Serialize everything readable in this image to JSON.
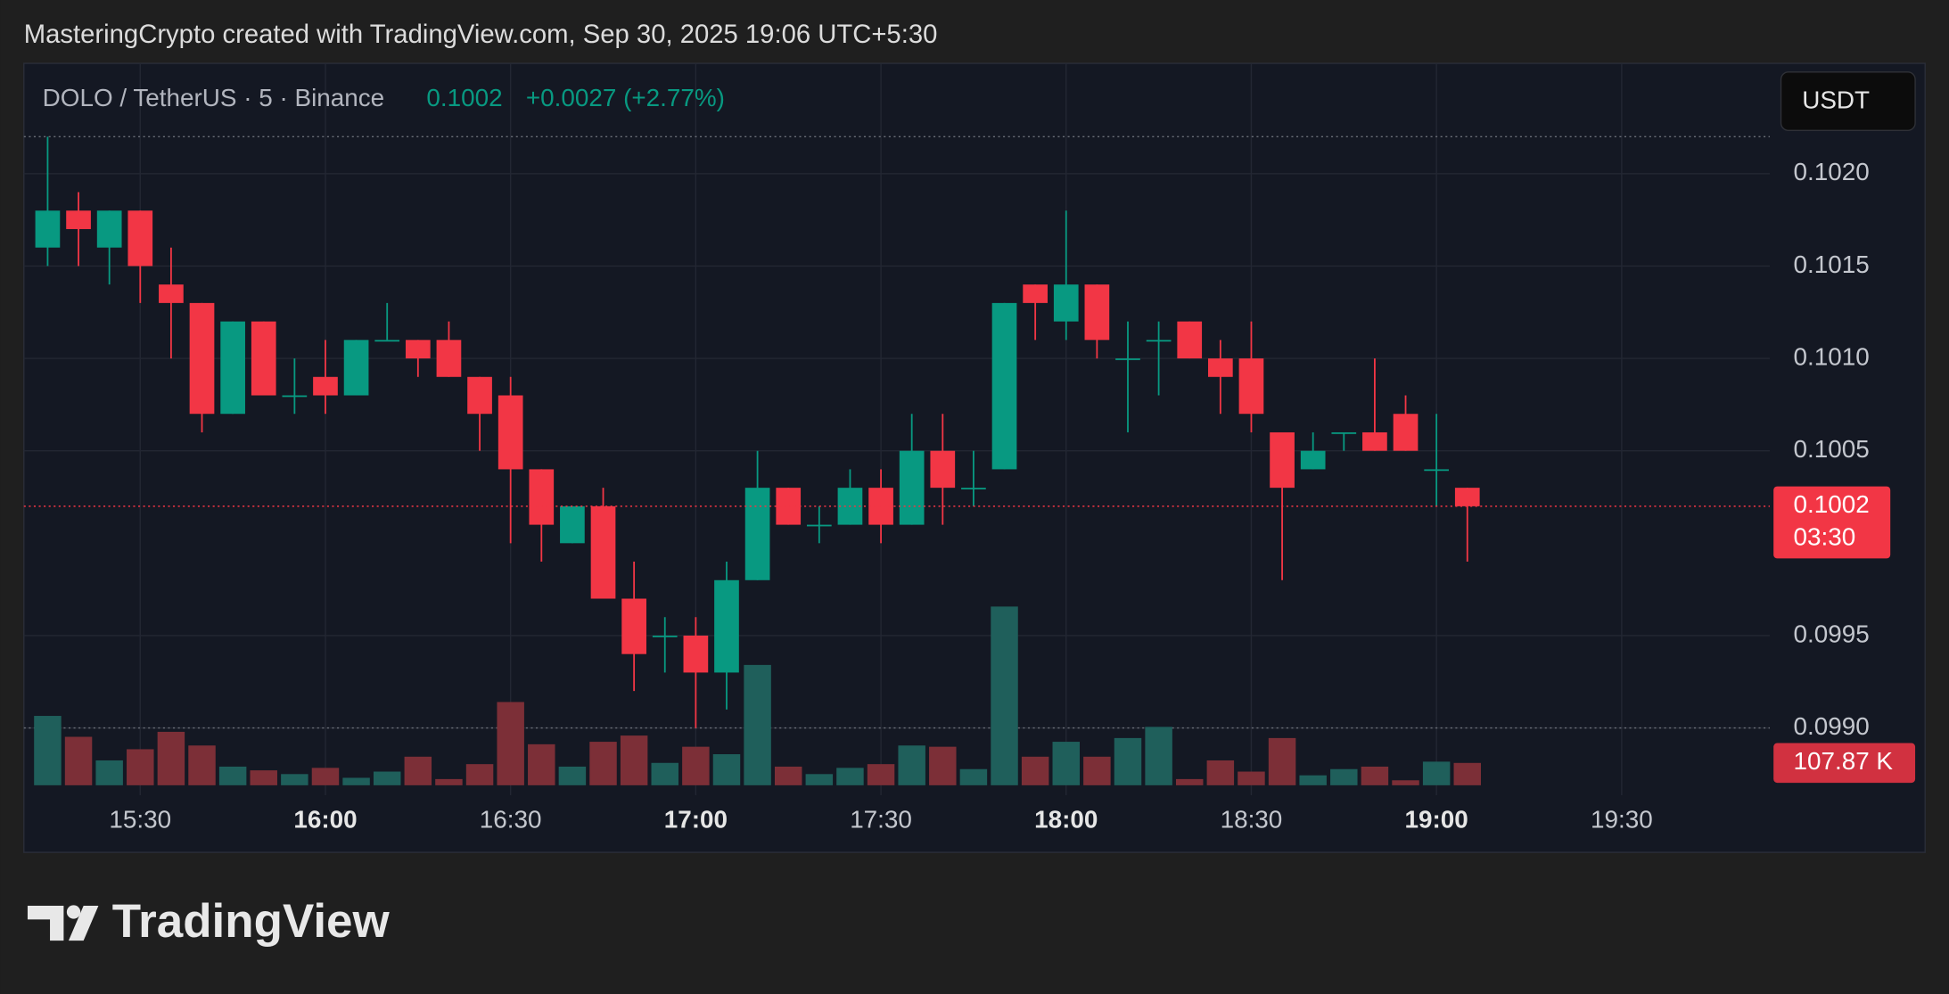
{
  "header": "MasteringCrypto created with TradingView.com, Sep 30, 2025 19:06 UTC+5:30",
  "footer": "TradingView",
  "chart_data": {
    "type": "candlestick",
    "symbol": "DOLO / TetherUS · 5 · Binance",
    "change": "+0.0027 (+2.77%)",
    "currency": "USDT",
    "countdown": "03:30",
    "open": [
      0.1016,
      0.1018,
      0.1016,
      0.1018,
      0.1014,
      0.1013,
      0.1007,
      0.1012,
      0.1008,
      0.1009,
      0.1008,
      0.1011,
      0.1011,
      0.1011,
      0.1009,
      0.1008,
      0.1004,
      0.1,
      0.1002,
      0.0997,
      0.0995,
      0.0995,
      0.0993,
      0.0998,
      0.1003,
      0.1001,
      0.1001,
      0.1003,
      0.1001,
      0.1005,
      0.1003,
      0.1004,
      0.1014,
      0.1012,
      0.1014,
      0.101,
      0.1011,
      0.1012,
      0.101,
      0.101,
      0.1006,
      0.1004,
      0.1006,
      0.1006,
      0.1007,
      0.1004,
      0.1003
    ],
    "high": [
      0.1022,
      0.1019,
      0.1018,
      0.1018,
      0.1016,
      0.1013,
      0.1012,
      0.1012,
      0.101,
      0.1011,
      0.1011,
      0.1013,
      0.1011,
      0.1012,
      0.1009,
      0.1009,
      0.1004,
      0.1002,
      0.1003,
      0.0999,
      0.0996,
      0.0996,
      0.0999,
      0.1005,
      0.1003,
      0.1002,
      0.1004,
      0.1004,
      0.1007,
      0.1007,
      0.1005,
      0.1013,
      0.1014,
      0.1018,
      0.1014,
      0.1012,
      0.1012,
      0.1012,
      0.1011,
      0.1012,
      0.1006,
      0.1006,
      0.1006,
      0.101,
      0.1008,
      0.1007,
      0.1003
    ],
    "low": [
      0.1015,
      0.1015,
      0.1014,
      0.1013,
      0.101,
      0.1006,
      0.1007,
      0.1008,
      0.1007,
      0.1007,
      0.1008,
      0.1011,
      0.1009,
      0.1009,
      0.1005,
      0.1,
      0.0999,
      0.1,
      0.0997,
      0.0992,
      0.0993,
      0.099,
      0.0991,
      0.0998,
      0.1001,
      0.1,
      0.1001,
      0.1,
      0.1001,
      0.1001,
      0.1002,
      0.1004,
      0.1011,
      0.1011,
      0.101,
      0.1006,
      0.1008,
      0.101,
      0.1007,
      0.1006,
      0.0998,
      0.1004,
      0.1005,
      0.1005,
      0.1005,
      0.1002,
      0.0999
    ],
    "close": [
      0.1018,
      0.1017,
      0.1018,
      0.1015,
      0.1013,
      0.1007,
      0.1012,
      0.1008,
      0.1008,
      0.1008,
      0.1011,
      0.1011,
      0.101,
      0.1009,
      0.1007,
      0.1004,
      0.1001,
      0.1002,
      0.0997,
      0.0994,
      0.0995,
      0.0993,
      0.0998,
      0.1003,
      0.1001,
      0.1001,
      0.1003,
      0.1001,
      0.1005,
      0.1003,
      0.1003,
      0.1013,
      0.1013,
      0.1014,
      0.1011,
      0.101,
      0.1011,
      0.101,
      0.1009,
      0.1007,
      0.1003,
      0.1005,
      0.1006,
      0.1005,
      0.1005,
      0.1004,
      0.1002
    ],
    "volume": [
      335000,
      234000,
      120000,
      174000,
      258000,
      192000,
      90000,
      72000,
      54000,
      84000,
      36000,
      66000,
      138000,
      30000,
      102000,
      402000,
      198000,
      90000,
      210000,
      240000,
      108000,
      186000,
      150000,
      581000,
      90000,
      54000,
      84000,
      102000,
      192000,
      186000,
      78000,
      863000,
      138000,
      210000,
      138000,
      228000,
      282000,
      30000,
      120000,
      66000,
      228000,
      48000,
      78000,
      90000,
      24000,
      114000,
      107870
    ],
    "last_volume_label": "107.87 K",
    "up_color": "#089981",
    "down_color": "#f23645",
    "volume_up_color": "#1f5f5b",
    "volume_down_color": "#7c2f37",
    "ylim": [
      0.09869,
      0.10257
    ],
    "yticks": [
      {
        "value": 0.102,
        "label": "0.1020"
      },
      0.1015,
      {
        "value": 0.101,
        "label": "0.1010"
      },
      0.1005,
      0.0995,
      {
        "value": 0.099,
        "label": "0.0990"
      }
    ],
    "xlim": [
      -0.77,
      55.8
    ],
    "xticks": [
      {
        "value": 3,
        "label": "15:30"
      },
      {
        "value": 9,
        "label": "16:00"
      },
      {
        "value": 15,
        "label": "16:30"
      },
      {
        "value": 21,
        "label": "17:00"
      },
      {
        "value": 27,
        "label": "17:30"
      },
      {
        "value": 33,
        "label": "18:00"
      },
      {
        "value": 39,
        "label": "18:30"
      },
      {
        "value": 45,
        "label": "19:00"
      },
      {
        "value": 51,
        "label": "19:30"
      }
    ],
    "volume_lim": [
      0,
      1200000
    ],
    "grid": true
  }
}
